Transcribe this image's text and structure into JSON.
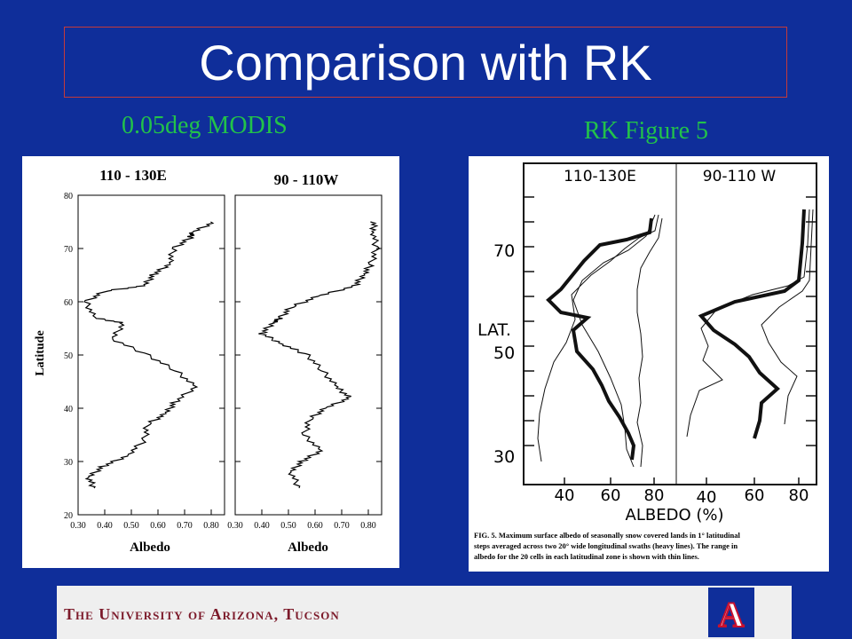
{
  "slide": {
    "title": "Comparison with RK",
    "left_caption": "0.05deg MODIS",
    "right_caption": "RK Figure 5"
  },
  "modis_plot": {
    "left_panel_title": "110 - 130E",
    "right_panel_title": "90 - 110W",
    "ylabel": "Latitude",
    "xlabel": "Albedo",
    "y_ticks": [
      "20",
      "30",
      "40",
      "50",
      "60",
      "70",
      "80"
    ],
    "x_ticks": [
      "0.30",
      "0.40",
      "0.50",
      "0.60",
      "0.70",
      "0.80"
    ]
  },
  "rk_figure": {
    "left_header": "110-130E",
    "right_header": "90-110 W",
    "lat_label": "LAT.",
    "y_ticks": [
      "70",
      "50",
      "30"
    ],
    "x_ticks_left": [
      "40",
      "60",
      "80"
    ],
    "x_ticks_right": [
      "40",
      "60",
      "80"
    ],
    "xlabel": "ALBEDO (%)",
    "caption_lines": [
      "FIG. 5. Maximum surface albedo of seasonally snow covered lands in 1° latitudinal",
      "steps averaged across two 20° wide longitudinal swaths (heavy lines). The range in",
      "albedo for the 20 cells in each latitudinal zone is shown with thin lines."
    ]
  },
  "footer": {
    "university": "The University of Arizona, Tucson",
    "logo_letter": "A"
  },
  "chart_data": [
    {
      "type": "line",
      "title": "110 - 130E",
      "xlabel": "Albedo",
      "ylabel": "Latitude",
      "xlim": [
        0.3,
        0.85
      ],
      "ylim": [
        20,
        80
      ],
      "series": [
        {
          "x": [
            0.81,
            0.73,
            0.72,
            0.66,
            0.64,
            0.58,
            0.55,
            0.4,
            0.33,
            0.36,
            0.47,
            0.43,
            0.56,
            0.67,
            0.74,
            0.66,
            0.63,
            0.56,
            0.55,
            0.48,
            0.39,
            0.34,
            0.36
          ],
          "y": [
            75,
            73,
            72,
            70,
            67,
            65,
            63,
            62,
            60,
            57,
            56,
            53,
            50,
            47,
            44,
            41,
            39,
            37,
            34,
            31,
            29,
            27,
            25
          ]
        }
      ]
    },
    {
      "type": "line",
      "title": "90 - 110W",
      "xlabel": "Albedo",
      "ylabel": "Latitude",
      "xlim": [
        0.3,
        0.85
      ],
      "ylim": [
        20,
        80
      ],
      "series": [
        {
          "x": [
            0.82,
            0.82,
            0.83,
            0.81,
            0.78,
            0.75,
            0.61,
            0.51,
            0.47,
            0.44,
            0.4,
            0.48,
            0.57,
            0.63,
            0.68,
            0.73,
            0.64,
            0.58,
            0.56,
            0.62,
            0.55,
            0.51,
            0.54
          ],
          "y": [
            75,
            73,
            70,
            67,
            65,
            63,
            61,
            59,
            57,
            56,
            54,
            52,
            50,
            47,
            44,
            42,
            40,
            38,
            35,
            32,
            30,
            28,
            25
          ]
        }
      ]
    }
  ]
}
